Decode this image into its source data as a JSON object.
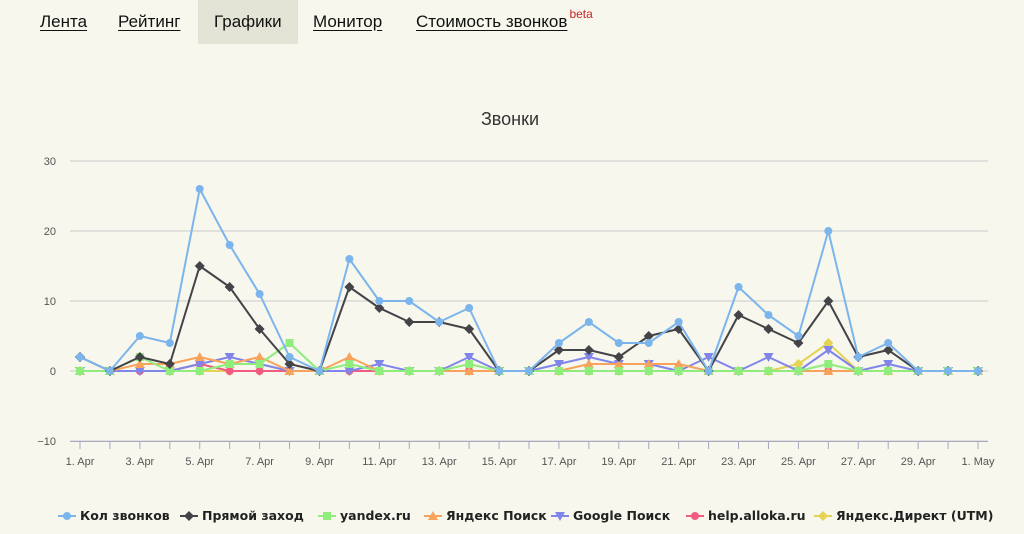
{
  "nav": {
    "tabs": [
      {
        "label": "Лента",
        "active": false
      },
      {
        "label": "Рейтинг",
        "active": false
      },
      {
        "label": "Графики",
        "active": true
      },
      {
        "label": "Монитор",
        "active": false
      },
      {
        "label": "Стоимость звонков",
        "badge": "beta",
        "active": false
      }
    ]
  },
  "chart_data": {
    "type": "line",
    "title": "Звонки",
    "xlabel": "",
    "ylabel": "",
    "ylim": [
      -10,
      30
    ],
    "yticks": [
      -10,
      0,
      10,
      20,
      30
    ],
    "x": [
      "1. Apr",
      "2. Apr",
      "3. Apr",
      "4. Apr",
      "5. Apr",
      "6. Apr",
      "7. Apr",
      "8. Apr",
      "9. Apr",
      "10. Apr",
      "11. Apr",
      "12. Apr",
      "13. Apr",
      "14. Apr",
      "15. Apr",
      "16. Apr",
      "17. Apr",
      "18. Apr",
      "19. Apr",
      "20. Apr",
      "21. Apr",
      "22. Apr",
      "23. Apr",
      "24. Apr",
      "25. Apr",
      "26. Apr",
      "27. Apr",
      "28. Apr",
      "29. Apr",
      "30. Apr",
      "1. May"
    ],
    "xtick_labels": [
      "1. Apr",
      "3. Apr",
      "5. Apr",
      "7. Apr",
      "9. Apr",
      "11. Apr",
      "13. Apr",
      "15. Apr",
      "17. Apr",
      "19. Apr",
      "21. Apr",
      "23. Apr",
      "25. Apr",
      "27. Apr",
      "29. Apr",
      "1. May"
    ],
    "grid": true,
    "legend_position": "bottom",
    "series": [
      {
        "name": "Кол звонков",
        "color": "#7cb5ec",
        "marker": "circle",
        "values": [
          2,
          0,
          5,
          4,
          26,
          18,
          11,
          2,
          0,
          16,
          10,
          10,
          7,
          9,
          0,
          0,
          4,
          7,
          4,
          4,
          7,
          0,
          12,
          8,
          5,
          20,
          2,
          4,
          0,
          0,
          0
        ]
      },
      {
        "name": "Прямой заход",
        "color": "#434348",
        "marker": "diamond",
        "values": [
          2,
          0,
          2,
          1,
          15,
          12,
          6,
          1,
          0,
          12,
          9,
          7,
          7,
          6,
          0,
          0,
          3,
          3,
          2,
          5,
          6,
          0,
          8,
          6,
          4,
          10,
          2,
          3,
          0,
          0,
          0
        ]
      },
      {
        "name": "yandex.ru",
        "color": "#90ed7d",
        "marker": "square",
        "values": [
          0,
          0,
          2,
          0,
          0,
          1,
          1,
          4,
          0,
          1,
          0,
          0,
          0,
          1,
          0,
          0,
          0,
          0,
          0,
          0,
          0,
          0,
          0,
          0,
          0,
          1,
          0,
          0,
          0,
          0,
          0
        ]
      },
      {
        "name": "Яндекс Поиск",
        "color": "#f7a35c",
        "marker": "triangle",
        "values": [
          0,
          0,
          1,
          1,
          2,
          1,
          2,
          0,
          0,
          2,
          0,
          0,
          0,
          0,
          0,
          0,
          0,
          1,
          1,
          1,
          1,
          0,
          0,
          0,
          0,
          0,
          0,
          0,
          0,
          0,
          0
        ]
      },
      {
        "name": "Google Поиск",
        "color": "#8085e9",
        "marker": "triangle-down",
        "values": [
          0,
          0,
          0,
          0,
          1,
          2,
          1,
          0,
          0,
          0,
          1,
          0,
          0,
          2,
          0,
          0,
          1,
          2,
          1,
          1,
          0,
          2,
          0,
          2,
          0,
          3,
          0,
          1,
          0,
          0,
          0
        ]
      },
      {
        "name": "help.alloka.ru",
        "color": "#f15c80",
        "marker": "circle",
        "values": [
          0,
          0,
          0,
          0,
          1,
          0,
          0,
          0,
          0,
          0,
          0,
          0,
          0,
          0,
          0,
          0,
          0,
          0,
          0,
          0,
          0,
          0,
          0,
          0,
          0,
          0,
          0,
          0,
          0,
          0,
          0
        ]
      },
      {
        "name": "Яндекс.Директ (UTM)",
        "color": "#e4d354",
        "marker": "diamond",
        "values": [
          0,
          0,
          0,
          0,
          0,
          0,
          0,
          0,
          0,
          0,
          0,
          0,
          0,
          0,
          0,
          0,
          0,
          0,
          0,
          0,
          0,
          0,
          0,
          0,
          1,
          4,
          0,
          0,
          0,
          0,
          0
        ]
      }
    ]
  }
}
